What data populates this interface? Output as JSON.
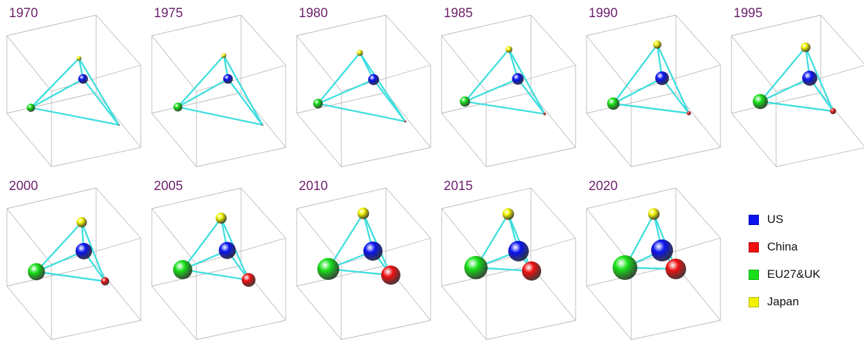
{
  "colors": {
    "year_text": "#6b1f6b",
    "box_edges": "#b8b8b8",
    "links": "#3fdede",
    "US": "#0a13f0",
    "China": "#f01010",
    "EU27&UK": "#18e018",
    "Japan": "#f2f200"
  },
  "legend": {
    "items": [
      {
        "key": "US",
        "label": "US",
        "color": "#0a13f0"
      },
      {
        "key": "China",
        "label": "China",
        "color": "#f01010"
      },
      {
        "key": "EU27&UK",
        "label": "EU27&UK",
        "color": "#18e018"
      },
      {
        "key": "Japan",
        "label": "Japan",
        "color": "#f2f200"
      }
    ]
  },
  "panels": [
    {
      "year": "1970",
      "nodes": {
        "Japan": {
          "r": 3.5
        },
        "US": {
          "r": 7
        },
        "EU27&UK": {
          "r": 6
        },
        "China": {
          "r": 1
        }
      }
    },
    {
      "year": "1975",
      "nodes": {
        "Japan": {
          "r": 3.5
        },
        "US": {
          "r": 7
        },
        "EU27&UK": {
          "r": 6.5
        },
        "China": {
          "r": 1
        }
      }
    },
    {
      "year": "1980",
      "nodes": {
        "Japan": {
          "r": 4.5
        },
        "US": {
          "r": 8
        },
        "EU27&UK": {
          "r": 7
        },
        "China": {
          "r": 1.5
        }
      }
    },
    {
      "year": "1985",
      "nodes": {
        "Japan": {
          "r": 5
        },
        "US": {
          "r": 8.5
        },
        "EU27&UK": {
          "r": 7.5
        },
        "China": {
          "r": 2
        }
      }
    },
    {
      "year": "1990",
      "nodes": {
        "Japan": {
          "r": 6
        },
        "US": {
          "r": 10
        },
        "EU27&UK": {
          "r": 9
        },
        "China": {
          "r": 3
        }
      }
    },
    {
      "year": "1995",
      "nodes": {
        "Japan": {
          "r": 7
        },
        "US": {
          "r": 11
        },
        "EU27&UK": {
          "r": 11
        },
        "China": {
          "r": 4.5
        }
      }
    },
    {
      "year": "2000",
      "nodes": {
        "Japan": {
          "r": 7.5
        },
        "US": {
          "r": 12
        },
        "EU27&UK": {
          "r": 12.5
        },
        "China": {
          "r": 6
        }
      }
    },
    {
      "year": "2005",
      "nodes": {
        "Japan": {
          "r": 8
        },
        "US": {
          "r": 12.5
        },
        "EU27&UK": {
          "r": 14
        },
        "China": {
          "r": 10
        }
      }
    },
    {
      "year": "2010",
      "nodes": {
        "Japan": {
          "r": 8.5
        },
        "US": {
          "r": 14
        },
        "EU27&UK": {
          "r": 16
        },
        "China": {
          "r": 14
        }
      }
    },
    {
      "year": "2015",
      "nodes": {
        "Japan": {
          "r": 8.5
        },
        "US": {
          "r": 15
        },
        "EU27&UK": {
          "r": 17
        },
        "China": {
          "r": 14
        }
      }
    },
    {
      "year": "2020",
      "nodes": {
        "Japan": {
          "r": 8.5
        },
        "US": {
          "r": 16
        },
        "EU27&UK": {
          "r": 18
        },
        "China": {
          "r": 15
        }
      }
    }
  ]
}
